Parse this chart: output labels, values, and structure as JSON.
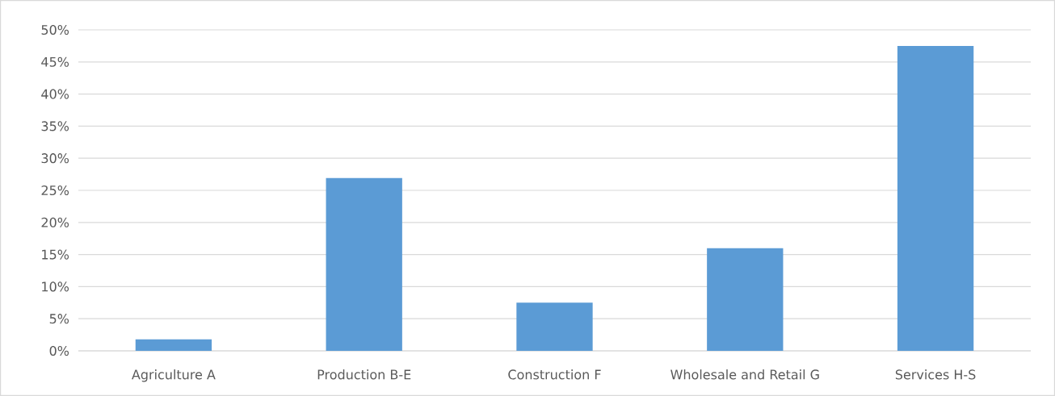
{
  "chart_data": {
    "type": "bar",
    "categories": [
      "Agriculture A",
      "Production B-E",
      "Construction F",
      "Wholesale and Retail G",
      "Services H-S"
    ],
    "values": [
      1.8,
      26.9,
      7.5,
      16.0,
      47.5
    ],
    "color": "#5b9bd5",
    "ylim": [
      0,
      50
    ],
    "yticks": [
      {
        "value": 0,
        "label": "0%"
      },
      {
        "value": 5,
        "label": "5%"
      },
      {
        "value": 10,
        "label": "10%"
      },
      {
        "value": 15,
        "label": "15%"
      },
      {
        "value": 20,
        "label": "20%"
      },
      {
        "value": 25,
        "label": "25%"
      },
      {
        "value": 30,
        "label": "30%"
      },
      {
        "value": 35,
        "label": "35%"
      },
      {
        "value": 40,
        "label": "40%"
      },
      {
        "value": 45,
        "label": "45%"
      },
      {
        "value": 50,
        "label": "50%"
      }
    ],
    "grid": "y"
  }
}
